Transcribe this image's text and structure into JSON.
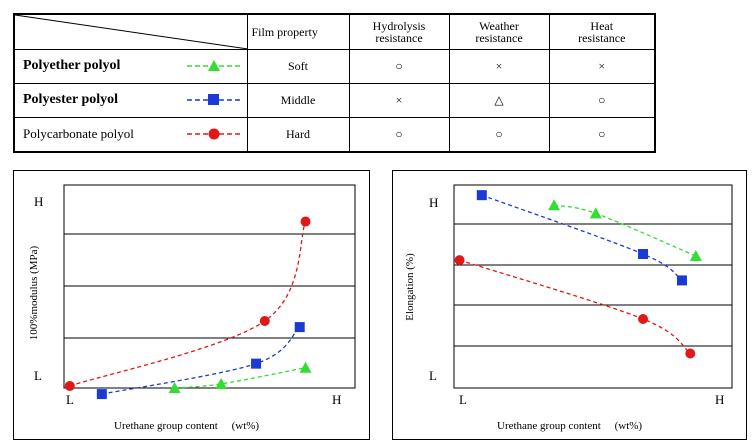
{
  "table": {
    "headers": [
      "Film  property",
      "Hydrolysis\nresistance",
      "Weather\nresistance",
      "Heat\nresistance"
    ],
    "rows": [
      {
        "name": "Polyether polyol",
        "color": "#33dd33",
        "marker": "triangle",
        "film": "Soft",
        "hydrolysis": "○",
        "weather": "×",
        "heat": "×"
      },
      {
        "name": "Polyester polyol",
        "color": "#1a3ad6",
        "marker": "square",
        "film": "Middle",
        "hydrolysis": "×",
        "weather": "△",
        "heat": "○"
      },
      {
        "name": "Polycarbonate  polyol",
        "color": "#e01818",
        "marker": "circle",
        "film": "Hard",
        "hydrolysis": "○",
        "weather": "○",
        "heat": "○"
      }
    ]
  },
  "chart_data": [
    {
      "type": "line",
      "ylabel": "100%modulus (MPa)",
      "xlabel": "Urethane group content　 (wt%)",
      "x_low_label": "L",
      "x_high_label": "H",
      "y_low_label": "L",
      "y_high_label": "H",
      "xlim": [
        0,
        10
      ],
      "ylim": [
        0,
        10
      ],
      "grid": "horizontal",
      "series": [
        {
          "name": "Polycarbonate polyol",
          "color": "#e01818",
          "marker": "circle",
          "points": [
            [
              0.2,
              0.1
            ],
            [
              6.9,
              3.3
            ],
            [
              8.3,
              8.2
            ]
          ]
        },
        {
          "name": "Polyester polyol",
          "color": "#1a3ad6",
          "marker": "square",
          "points": [
            [
              1.3,
              -0.3
            ],
            [
              6.6,
              1.2
            ],
            [
              8.1,
              3.0
            ]
          ]
        },
        {
          "name": "Polyether polyol",
          "color": "#33dd33",
          "marker": "triangle",
          "points": [
            [
              3.8,
              0.0
            ],
            [
              5.4,
              0.2
            ],
            [
              8.3,
              1.0
            ]
          ]
        }
      ]
    },
    {
      "type": "line",
      "ylabel": "Elongation  (%)",
      "xlabel": "Urethane group content　 (wt%)",
      "x_low_label": "L",
      "x_high_label": "H",
      "y_low_label": "L",
      "y_high_label": "H",
      "xlim": [
        0,
        10
      ],
      "ylim": [
        0,
        10
      ],
      "grid": "horizontal",
      "series": [
        {
          "name": "Polyether polyol",
          "color": "#33dd33",
          "marker": "triangle",
          "points": [
            [
              3.6,
              9.0
            ],
            [
              5.1,
              8.6
            ],
            [
              8.7,
              6.5
            ]
          ]
        },
        {
          "name": "Polyester polyol",
          "color": "#1a3ad6",
          "marker": "square",
          "points": [
            [
              1.0,
              9.5
            ],
            [
              6.8,
              6.6
            ],
            [
              8.2,
              5.3
            ]
          ]
        },
        {
          "name": "Polycarbonate polyol",
          "color": "#e01818",
          "marker": "circle",
          "points": [
            [
              0.2,
              6.3
            ],
            [
              6.8,
              3.4
            ],
            [
              8.5,
              1.7
            ]
          ]
        }
      ]
    }
  ]
}
